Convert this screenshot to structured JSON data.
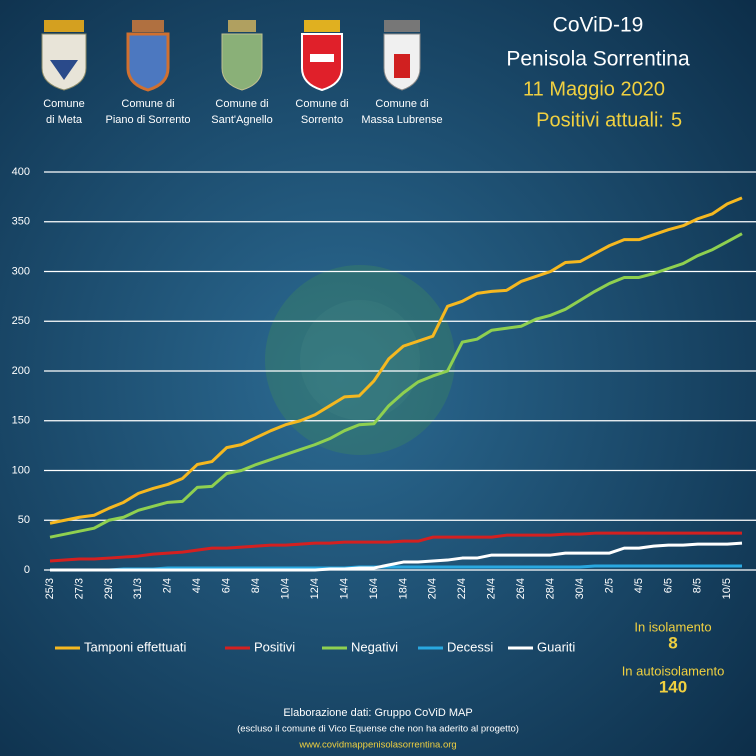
{
  "header": {
    "communes": [
      [
        "Comune",
        "di Meta"
      ],
      [
        "Comune di",
        "Piano di Sorrento"
      ],
      [
        "Comune di",
        "Sant'Agnello"
      ],
      [
        "Comune di",
        "Sorrento"
      ],
      [
        "Comune di",
        "Massa Lubrense"
      ]
    ],
    "date": "11 Maggio 2020",
    "positivi_label": "Positivi attuali:",
    "positivi": 5
  },
  "chart_data": {
    "type": "line",
    "title": "CoViD-19",
    "subtitle": "Penisola Sorrentina",
    "categories": [
      "25/3",
      null,
      "27/3",
      null,
      "29/3",
      null,
      "31/3",
      null,
      "2/4",
      null,
      "4/4",
      null,
      "6/4",
      null,
      "8/4",
      null,
      "10/4",
      null,
      "12/4",
      null,
      "14/4",
      null,
      "16/4",
      null,
      "18/4",
      null,
      "20/4",
      null,
      "22/4",
      null,
      "24/4",
      null,
      "26/4",
      null,
      "28/4",
      null,
      "30/4",
      null,
      "2/5",
      null,
      "4/5",
      null,
      "6/5",
      null,
      "8/5",
      null,
      "10/5",
      null
    ],
    "series": [
      {
        "name": "Tamponi effettuati",
        "color": "#f5b820",
        "values": [
          47,
          50,
          53,
          55,
          62,
          68,
          77,
          82,
          86,
          92,
          106,
          109,
          123,
          126,
          133,
          140,
          146,
          150,
          156,
          165,
          174,
          175,
          190,
          212,
          225,
          230,
          235,
          265,
          270,
          278,
          280,
          281,
          290,
          295,
          300,
          309,
          310,
          318,
          326,
          332,
          332,
          337,
          342,
          346,
          353,
          358,
          368,
          374
        ]
      },
      {
        "name": "Positivi",
        "color": "#d42020",
        "values": [
          9,
          10,
          11,
          11,
          12,
          13,
          14,
          16,
          17,
          18,
          20,
          22,
          22,
          23,
          24,
          25,
          25,
          26,
          27,
          27,
          28,
          28,
          28,
          28,
          29,
          29,
          33,
          33,
          33,
          33,
          33,
          35,
          35,
          35,
          35,
          36,
          36,
          37,
          37,
          37,
          37,
          37,
          37,
          37,
          37,
          37,
          37,
          37
        ]
      },
      {
        "name": "Negativi",
        "color": "#8fd050",
        "values": [
          33,
          36,
          39,
          42,
          50,
          53,
          60,
          64,
          68,
          69,
          83,
          84,
          97,
          100,
          106,
          111,
          116,
          121,
          126,
          132,
          140,
          146,
          147,
          165,
          178,
          189,
          195,
          200,
          229,
          232,
          241,
          243,
          245,
          252,
          256,
          262,
          271,
          280,
          288,
          294,
          294,
          298,
          303,
          308,
          316,
          322,
          330,
          338
        ]
      },
      {
        "name": "Decessi",
        "color": "#29a8e0",
        "values": [
          0,
          0,
          0,
          0,
          0,
          1,
          1,
          1,
          2,
          2,
          2,
          2,
          2,
          2,
          2,
          2,
          2,
          2,
          2,
          2,
          2,
          3,
          3,
          3,
          3,
          3,
          3,
          3,
          3,
          3,
          3,
          3,
          3,
          3,
          3,
          3,
          3,
          4,
          4,
          4,
          4,
          4,
          4,
          4,
          4,
          4,
          4,
          4
        ]
      },
      {
        "name": "Guariti",
        "color": "#ffffff",
        "values": [
          0,
          0,
          0,
          0,
          0,
          0,
          0,
          0,
          0,
          0,
          0,
          0,
          0,
          0,
          0,
          0,
          0,
          0,
          0,
          1,
          1,
          2,
          2,
          5,
          8,
          8,
          9,
          10,
          12,
          12,
          15,
          15,
          15,
          15,
          15,
          17,
          17,
          17,
          17,
          22,
          22,
          24,
          25,
          25,
          26,
          26,
          26,
          27
        ]
      }
    ],
    "ylim": [
      0,
      400
    ],
    "yticks": [
      0,
      50,
      100,
      150,
      200,
      250,
      300,
      350,
      400
    ],
    "grid": true
  },
  "stats": [
    {
      "label": "In isolamento",
      "value": 8
    },
    {
      "label": "In autoisolamento",
      "value": 140
    }
  ],
  "footer": [
    "Elaborazione  dati:  Gruppo CoViD MAP",
    "(escluso il comune  di Vico  Equense che non  ha aderito al progetto)",
    "www.covidmappenisolasorrentina.org"
  ]
}
